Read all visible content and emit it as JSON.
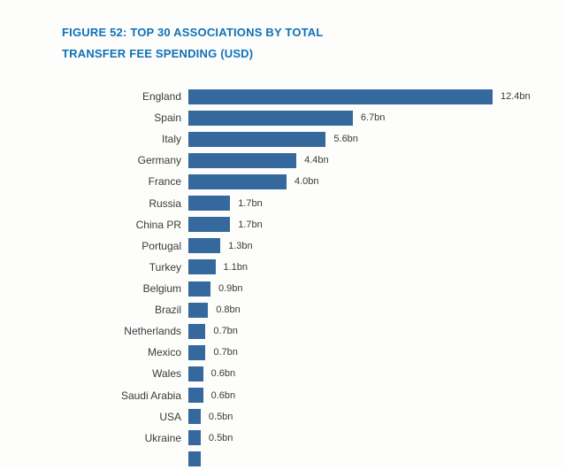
{
  "figure": {
    "title_line1": "FIGURE 52: TOP 30 ASSOCIATIONS BY TOTAL",
    "title_line2": "TRANSFER FEE SPENDING (USD)"
  },
  "colors": {
    "bar": "#35689d",
    "title": "#0e72b8",
    "text": "#3a3a3a",
    "background": "#fdfdfc"
  },
  "chart_data": {
    "type": "bar",
    "orientation": "horizontal",
    "title": "FIGURE 52: TOP 30 ASSOCIATIONS BY TOTAL TRANSFER FEE SPENDING (USD)",
    "unit": "USD billions",
    "xlim": [
      0,
      12.4
    ],
    "grid": false,
    "legend": false,
    "categories": [
      "England",
      "Spain",
      "Italy",
      "Germany",
      "France",
      "Russia",
      "China PR",
      "Portugal",
      "Turkey",
      "Belgium",
      "Brazil",
      "Netherlands",
      "Mexico",
      "Wales",
      "Saudi Arabia",
      "USA",
      "Ukraine"
    ],
    "values": [
      12.4,
      6.7,
      5.6,
      4.4,
      4.0,
      1.7,
      1.7,
      1.3,
      1.1,
      0.9,
      0.8,
      0.7,
      0.7,
      0.6,
      0.6,
      0.5,
      0.5
    ],
    "value_labels": [
      "12.4bn",
      "6.7bn",
      "5.6bn",
      "4.4bn",
      "4.0bn",
      "1.7bn",
      "1.7bn",
      "1.3bn",
      "1.1bn",
      "0.9bn",
      "0.8bn",
      "0.7bn",
      "0.7bn",
      "0.6bn",
      "0.6bn",
      "0.5bn",
      "0.5bn"
    ],
    "partial_next_row": {
      "bar_sliver_visible": true,
      "approx_value": 0.5
    }
  },
  "layout_note": "chart cropped at bottom of image; 18th bar partially visible without label"
}
